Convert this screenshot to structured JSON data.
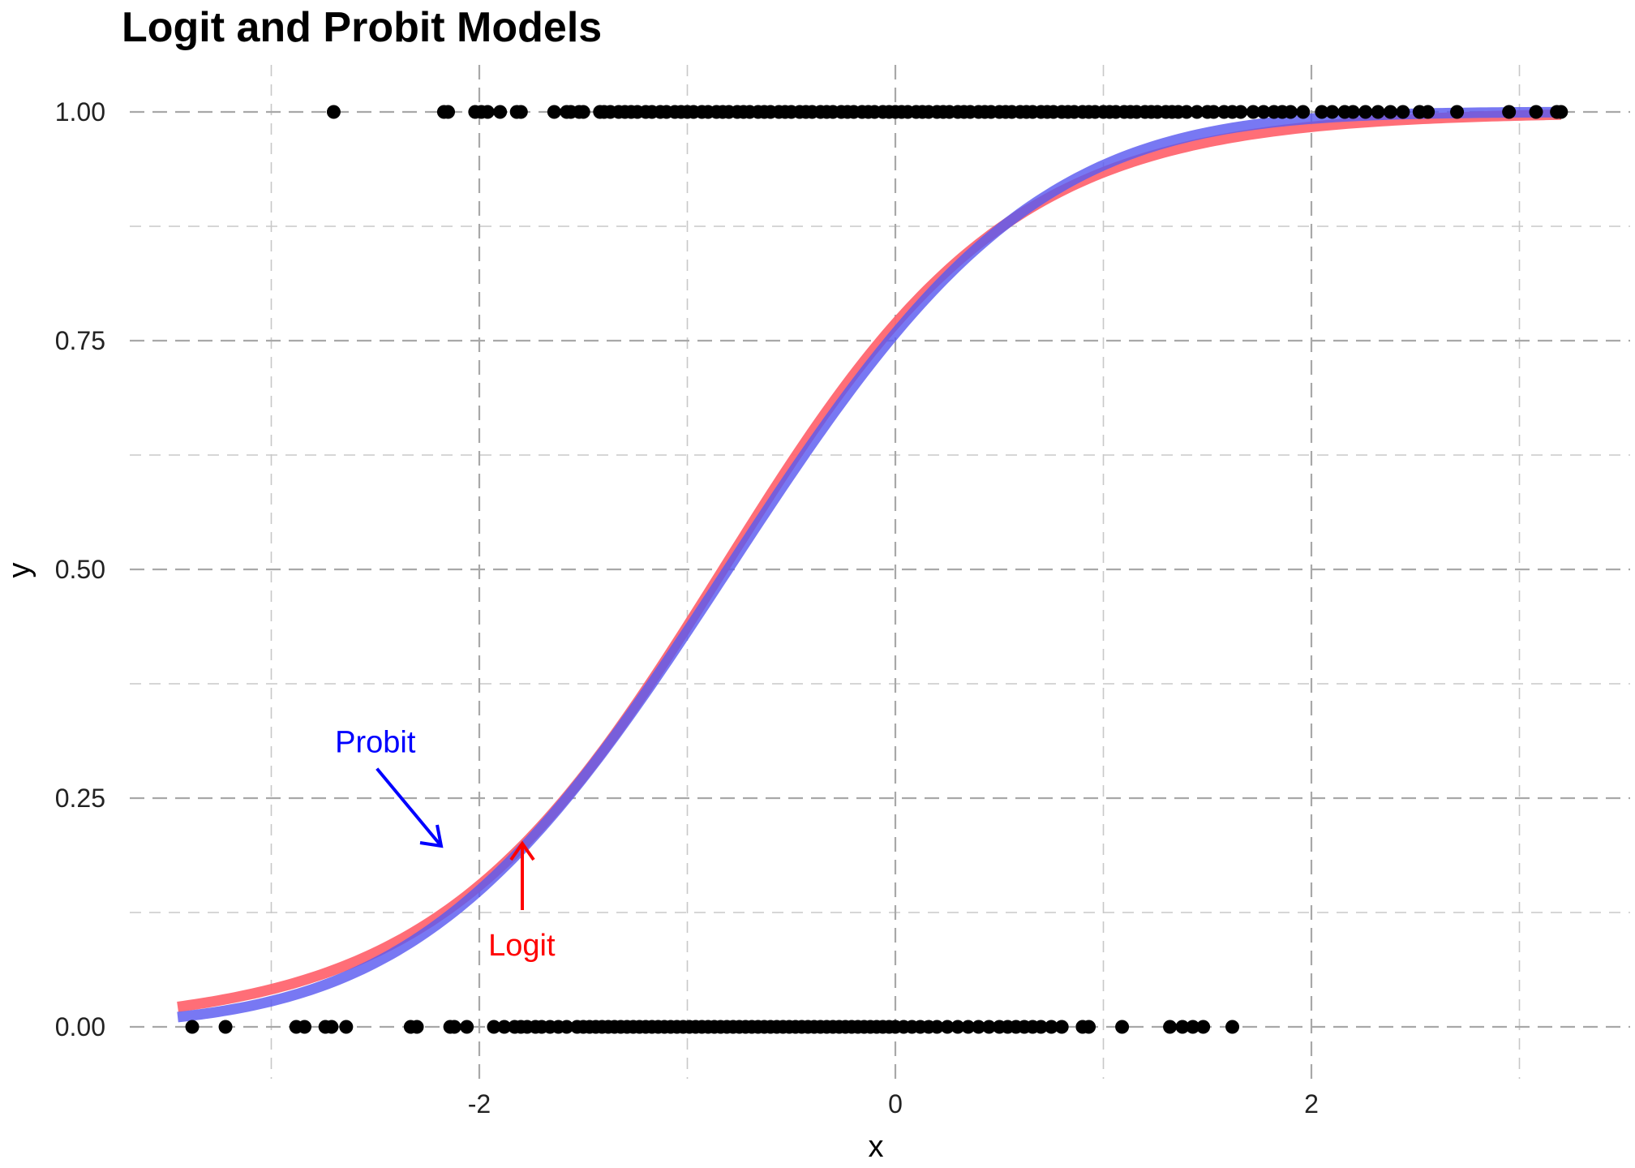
{
  "chart_data": {
    "type": "scatter",
    "title": "Logit and Probit Models",
    "xlabel": "x",
    "ylabel": "y",
    "xlim": [
      -3.5,
      3.5
    ],
    "ylim": [
      -0.05,
      1.05
    ],
    "x_ticks": [
      -2,
      0,
      2
    ],
    "x_tick_labels": [
      "-2",
      "0",
      "2"
    ],
    "x_minor_ticks": [
      -3,
      -1,
      1,
      3
    ],
    "y_ticks": [
      0,
      0.25,
      0.5,
      0.75,
      1
    ],
    "y_tick_labels": [
      "0.00",
      "0.25",
      "0.50",
      "0.75",
      "1.00"
    ],
    "y_minor_ticks": [
      0.125,
      0.375,
      0.625,
      0.875
    ],
    "grid": true,
    "legend": "none",
    "colors": {
      "probit": "#5a5af0",
      "logit": "#ff6670",
      "points": "#000000",
      "grid": "#c8c8c8"
    },
    "curves": {
      "logit": {
        "intercept": 1.2,
        "slope": 1.45,
        "x_range": [
          -3.45,
          3.2
        ]
      },
      "probit": {
        "intercept": 0.7,
        "slope": 0.87,
        "x_range": [
          -3.45,
          3.2
        ]
      }
    },
    "points": {
      "y1_x": [
        -2.7,
        -2.17,
        -2.15,
        -2.02,
        -1.99,
        -1.96,
        -1.9,
        -1.82,
        -1.8,
        -1.64,
        -1.58,
        -1.56,
        -1.52,
        -1.5,
        -1.42,
        -1.4,
        -1.37,
        -1.33,
        -1.3,
        -1.27,
        -1.24,
        -1.2,
        -1.17,
        -1.13,
        -1.1,
        -1.06,
        -1.03,
        -1.0,
        -0.97,
        -0.93,
        -0.9,
        -0.86,
        -0.83,
        -0.8,
        -0.76,
        -0.73,
        -0.7,
        -0.66,
        -0.63,
        -0.6,
        -0.56,
        -0.53,
        -0.5,
        -0.46,
        -0.43,
        -0.4,
        -0.36,
        -0.33,
        -0.3,
        -0.26,
        -0.23,
        -0.2,
        -0.16,
        -0.13,
        -0.1,
        -0.06,
        -0.03,
        0.0,
        0.03,
        0.06,
        0.1,
        0.13,
        0.16,
        0.2,
        0.23,
        0.26,
        0.3,
        0.33,
        0.36,
        0.4,
        0.43,
        0.46,
        0.5,
        0.53,
        0.56,
        0.6,
        0.63,
        0.66,
        0.7,
        0.73,
        0.76,
        0.8,
        0.83,
        0.86,
        0.9,
        0.93,
        0.96,
        1.0,
        1.03,
        1.06,
        1.1,
        1.13,
        1.16,
        1.2,
        1.23,
        1.26,
        1.3,
        1.33,
        1.36,
        1.4,
        1.45,
        1.5,
        1.53,
        1.58,
        1.62,
        1.66,
        1.72,
        1.77,
        1.82,
        1.86,
        1.9,
        1.96,
        2.05,
        2.1,
        2.16,
        2.2,
        2.26,
        2.32,
        2.38,
        2.44,
        2.52,
        2.56,
        2.7,
        2.95,
        3.08,
        3.18,
        3.2
      ],
      "y0_x": [
        -3.38,
        -3.22,
        -2.88,
        -2.84,
        -2.74,
        -2.71,
        -2.64,
        -2.33,
        -2.3,
        -2.14,
        -2.12,
        -2.06,
        -1.93,
        -1.88,
        -1.83,
        -1.8,
        -1.77,
        -1.73,
        -1.7,
        -1.66,
        -1.62,
        -1.58,
        -1.53,
        -1.5,
        -1.47,
        -1.44,
        -1.41,
        -1.38,
        -1.35,
        -1.32,
        -1.29,
        -1.26,
        -1.23,
        -1.2,
        -1.17,
        -1.14,
        -1.11,
        -1.08,
        -1.05,
        -1.02,
        -0.99,
        -0.96,
        -0.93,
        -0.9,
        -0.87,
        -0.84,
        -0.81,
        -0.78,
        -0.75,
        -0.72,
        -0.69,
        -0.66,
        -0.63,
        -0.6,
        -0.57,
        -0.54,
        -0.51,
        -0.48,
        -0.45,
        -0.42,
        -0.39,
        -0.36,
        -0.33,
        -0.3,
        -0.27,
        -0.24,
        -0.21,
        -0.18,
        -0.15,
        -0.12,
        -0.09,
        -0.06,
        -0.03,
        0.0,
        0.04,
        0.08,
        0.12,
        0.16,
        0.2,
        0.25,
        0.3,
        0.35,
        0.4,
        0.45,
        0.5,
        0.54,
        0.58,
        0.62,
        0.66,
        0.7,
        0.75,
        0.8,
        0.9,
        0.93,
        1.09,
        1.32,
        1.38,
        1.43,
        1.48,
        1.62
      ]
    },
    "annotations": [
      {
        "text": "Probit",
        "color": "#0000ff",
        "x": -2.5,
        "y": 0.3
      },
      {
        "text": "Logit",
        "color": "#ff0000",
        "x": -1.8,
        "y": 0.1
      }
    ]
  }
}
